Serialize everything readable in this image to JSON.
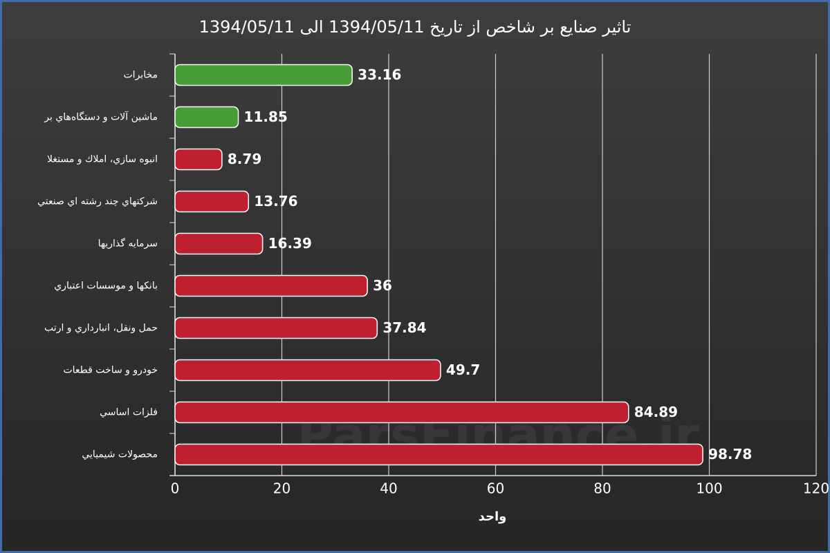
{
  "chart_data": {
    "type": "bar",
    "orientation": "horizontal",
    "title": "تاثیر صنایع بر شاخص از تاریخ 1394/05/11 الی 1394/05/11",
    "x_label": "واحد",
    "watermark": "ParsFinance.ir",
    "categories": [
      "مخابرات",
      "ماشين آلات و دستگاه‌هاي بر",
      "انبوه سازي، املاك و مستغلا",
      "شركتهاي چند رشته اي صنعتي",
      "سرمايه گذاريها",
      "بانكها و موسسات اعتباري",
      "حمل ونقل، انبارداري و ارتب",
      "خودرو و ساخت قطعات",
      "فلزات اساسي",
      "محصولات شيميايي"
    ],
    "values": [
      33.16,
      11.85,
      8.79,
      13.76,
      16.39,
      36,
      37.84,
      49.7,
      84.89,
      98.78
    ],
    "colors": [
      "#479e36",
      "#479e36",
      "#bf202f",
      "#bf202f",
      "#bf202f",
      "#bf202f",
      "#bf202f",
      "#bf202f",
      "#bf202f",
      "#bf202f"
    ],
    "xlim": [
      0,
      120
    ],
    "xticks": [
      0,
      20,
      40,
      60,
      80,
      100,
      120
    ],
    "grid": true
  }
}
